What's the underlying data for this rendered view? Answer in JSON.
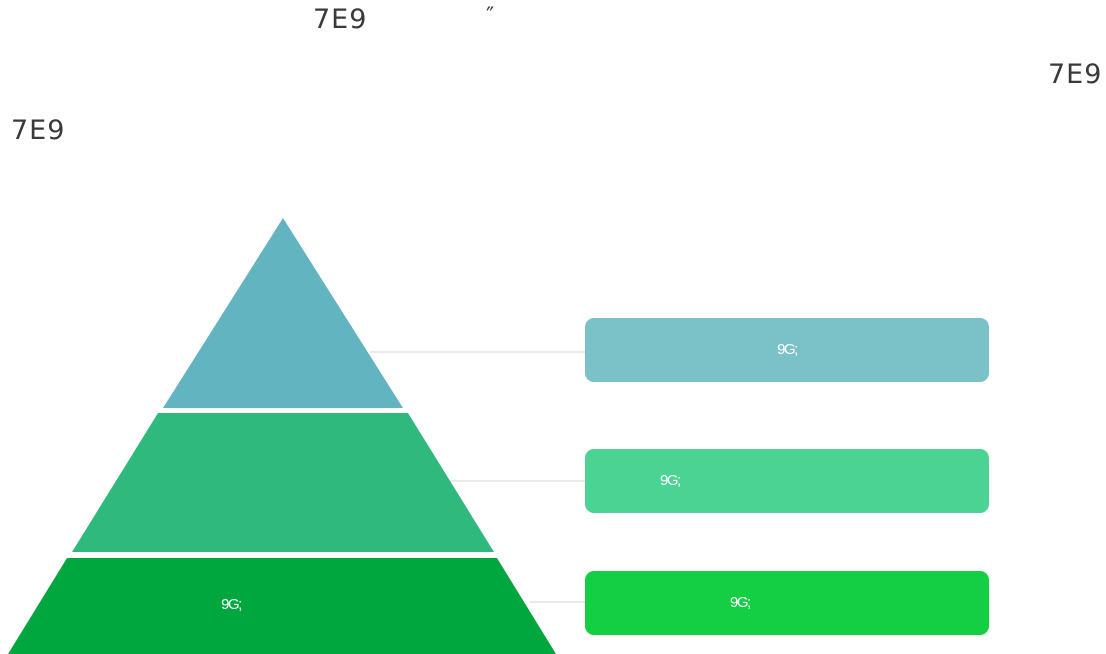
{
  "header": {
    "text_a": "7E9",
    "quote_mark": "″",
    "text_b": "7E9",
    "text_c": "7E9"
  },
  "pyramid": {
    "levels": [
      {
        "position": "top",
        "label": "",
        "color": "#62b5c0"
      },
      {
        "position": "middle",
        "label": "",
        "color": "#2fb97c"
      },
      {
        "position": "bottom",
        "label": "9G;",
        "color": "#00a63e"
      }
    ]
  },
  "callouts": [
    {
      "position": "top",
      "label": "9G;",
      "color": "#7bc2c8"
    },
    {
      "position": "middle",
      "label": "9G;",
      "color": "#4bd394"
    },
    {
      "position": "bottom",
      "label": "9G;",
      "color": "#14cf44"
    }
  ]
}
